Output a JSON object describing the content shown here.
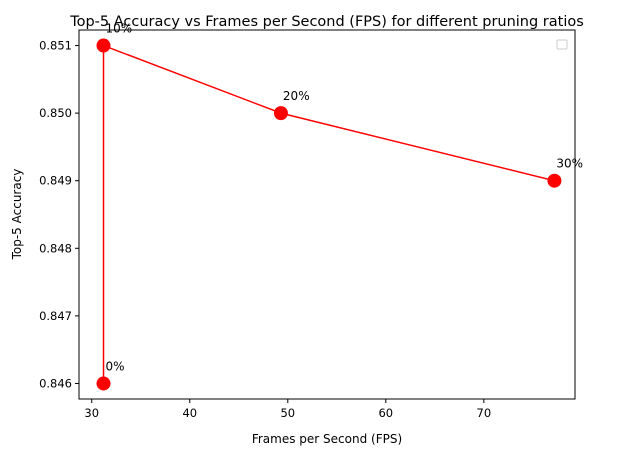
{
  "chart_data": {
    "type": "line",
    "title": "Top-5 Accuracy vs Frames per Second (FPS) for different pruning ratios",
    "xlabel": "Frames per Second (FPS)",
    "ylabel": "Top-5 Accuracy",
    "xlim": [
      28.7,
      79.3
    ],
    "ylim": [
      0.84577,
      0.85123
    ],
    "xticks": [
      30,
      40,
      50,
      60,
      70
    ],
    "xtick_labels": [
      "30",
      "40",
      "50",
      "60",
      "70"
    ],
    "yticks": [
      0.846,
      0.847,
      0.848,
      0.849,
      0.85,
      0.851
    ],
    "ytick_labels": [
      "0.846",
      "0.847",
      "0.848",
      "0.849",
      "0.850",
      "0.851"
    ],
    "grid": false,
    "legend": "top-right (empty)",
    "series": [
      {
        "color": "#ff0000",
        "marker": "circle",
        "points": [
          {
            "x": 31.2,
            "y": 0.846,
            "label": "0%"
          },
          {
            "x": 31.2,
            "y": 0.851,
            "label": "10%"
          },
          {
            "x": 49.3,
            "y": 0.85,
            "label": "20%"
          },
          {
            "x": 77.2,
            "y": 0.849,
            "label": "30%"
          }
        ]
      }
    ]
  }
}
